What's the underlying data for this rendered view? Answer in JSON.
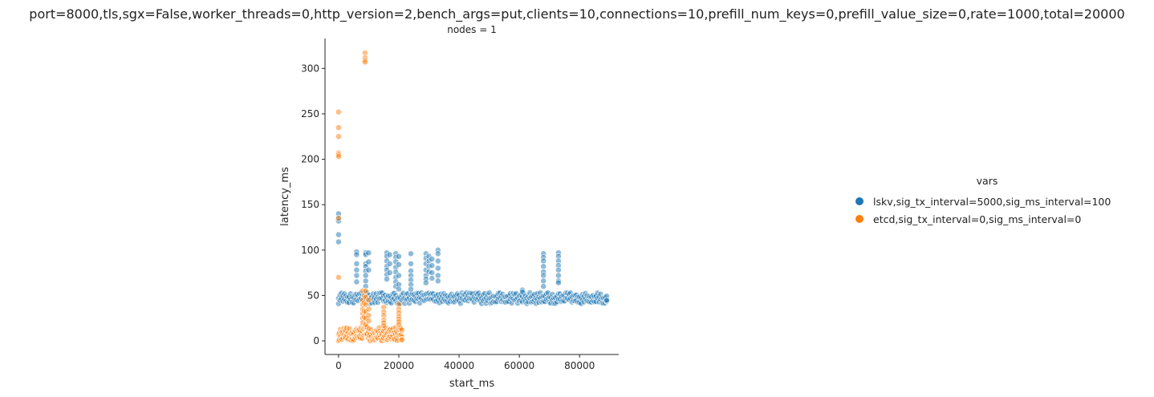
{
  "figure": {
    "title": "port=8000,tls,sgx=False,worker_threads=0,http_version=2,bench_args=put,clients=10,connections=10,prefill_num_keys=0,prefill_value_size=0,rate=1000,total=20000",
    "facet_title": "nodes = 1"
  },
  "legend": {
    "title": "vars",
    "items": [
      {
        "label": "lskv,sig_tx_interval=5000,sig_ms_interval=100",
        "color": "#1f77b4"
      },
      {
        "label": "etcd,sig_tx_interval=0,sig_ms_interval=0",
        "color": "#ff7f0e"
      }
    ]
  },
  "chart_data": {
    "type": "scatter",
    "xlabel": "start_ms",
    "ylabel": "latency_ms",
    "xlim": [
      -4500,
      93000
    ],
    "ylim": [
      -15,
      333
    ],
    "xticks": [
      0,
      20000,
      40000,
      60000,
      80000
    ],
    "yticks": [
      0,
      50,
      100,
      150,
      200,
      250,
      300
    ],
    "grid": false,
    "legend_position": "right",
    "series": [
      {
        "name": "lskv,sig_tx_interval=5000,sig_ms_interval=100",
        "color": "#1f77b4",
        "opacity": 0.5,
        "band": {
          "x_range": [
            0,
            89000
          ],
          "y_range": [
            41,
            53
          ],
          "step_ms": 500
        },
        "points": [
          [
            0,
            140
          ],
          [
            0,
            135
          ],
          [
            0,
            132
          ],
          [
            0,
            117
          ],
          [
            0,
            109
          ],
          [
            6000,
            98
          ],
          [
            6000,
            95
          ],
          [
            6000,
            85
          ],
          [
            6000,
            78
          ],
          [
            6000,
            72
          ],
          [
            6000,
            65
          ],
          [
            9000,
            97
          ],
          [
            9000,
            95
          ],
          [
            9000,
            85
          ],
          [
            9000,
            82
          ],
          [
            9000,
            77
          ],
          [
            9000,
            72
          ],
          [
            9000,
            66
          ],
          [
            9000,
            60
          ],
          [
            10000,
            97
          ],
          [
            10000,
            87
          ],
          [
            10000,
            78
          ],
          [
            16000,
            97
          ],
          [
            16000,
            93
          ],
          [
            16000,
            88
          ],
          [
            16000,
            82
          ],
          [
            16000,
            78
          ],
          [
            16000,
            73
          ],
          [
            16000,
            68
          ],
          [
            17000,
            95
          ],
          [
            17000,
            85
          ],
          [
            17000,
            75
          ],
          [
            19000,
            96
          ],
          [
            19000,
            92
          ],
          [
            19000,
            87
          ],
          [
            19000,
            81
          ],
          [
            19000,
            76
          ],
          [
            19000,
            70
          ],
          [
            19000,
            65
          ],
          [
            19000,
            60
          ],
          [
            20000,
            93
          ],
          [
            20000,
            84
          ],
          [
            20000,
            72
          ],
          [
            20000,
            62
          ],
          [
            20000,
            57
          ],
          [
            24000,
            96
          ],
          [
            24000,
            85
          ],
          [
            24000,
            77
          ],
          [
            24000,
            72
          ],
          [
            24000,
            67
          ],
          [
            24000,
            62
          ],
          [
            24000,
            57
          ],
          [
            29000,
            96
          ],
          [
            29000,
            91
          ],
          [
            29000,
            85
          ],
          [
            29000,
            78
          ],
          [
            29000,
            72
          ],
          [
            29000,
            68
          ],
          [
            29000,
            64
          ],
          [
            30000,
            93
          ],
          [
            30000,
            88
          ],
          [
            30000,
            82
          ],
          [
            30000,
            76
          ],
          [
            31000,
            90
          ],
          [
            31000,
            83
          ],
          [
            31000,
            75
          ],
          [
            31000,
            69
          ],
          [
            33000,
            100
          ],
          [
            33000,
            96
          ],
          [
            33000,
            88
          ],
          [
            33000,
            80
          ],
          [
            33000,
            72
          ],
          [
            33000,
            66
          ],
          [
            61000,
            56
          ],
          [
            61000,
            54
          ],
          [
            68000,
            96
          ],
          [
            68000,
            92
          ],
          [
            68000,
            88
          ],
          [
            68000,
            82
          ],
          [
            68000,
            76
          ],
          [
            68000,
            72
          ],
          [
            68000,
            66
          ],
          [
            68000,
            60
          ],
          [
            73000,
            97
          ],
          [
            73000,
            93
          ],
          [
            73000,
            88
          ],
          [
            73000,
            83
          ],
          [
            73000,
            78
          ],
          [
            73000,
            72
          ],
          [
            73000,
            66
          ],
          [
            73000,
            64
          ],
          [
            89000,
            44
          ],
          [
            89000,
            45
          ]
        ]
      },
      {
        "name": "etcd,sig_tx_interval=0,sig_ms_interval=0",
        "color": "#ff7f0e",
        "opacity": 0.5,
        "band": {
          "x_range": [
            0,
            21000
          ],
          "y_range": [
            0,
            15
          ],
          "step_ms": 300
        },
        "points": [
          [
            0,
            252
          ],
          [
            0,
            235
          ],
          [
            0,
            225
          ],
          [
            0,
            207
          ],
          [
            0,
            205
          ],
          [
            0,
            203
          ],
          [
            0,
            135
          ],
          [
            0,
            70
          ],
          [
            8800,
            317
          ],
          [
            8800,
            312
          ],
          [
            8800,
            309
          ],
          [
            8800,
            307
          ],
          [
            8000,
            55
          ],
          [
            8000,
            45
          ],
          [
            8000,
            40
          ],
          [
            8000,
            35
          ],
          [
            8000,
            30
          ],
          [
            8000,
            25
          ],
          [
            8000,
            20
          ],
          [
            8500,
            50
          ],
          [
            8500,
            42
          ],
          [
            8500,
            33
          ],
          [
            8500,
            26
          ],
          [
            9000,
            55
          ],
          [
            9000,
            48
          ],
          [
            9000,
            40
          ],
          [
            9000,
            32
          ],
          [
            9000,
            25
          ],
          [
            9000,
            18
          ],
          [
            10000,
            45
          ],
          [
            10000,
            35
          ],
          [
            10000,
            28
          ],
          [
            10000,
            22
          ],
          [
            15000,
            37
          ],
          [
            15000,
            32
          ],
          [
            15000,
            28
          ],
          [
            15000,
            23
          ],
          [
            15000,
            20
          ],
          [
            15000,
            17
          ],
          [
            20000,
            40
          ],
          [
            20000,
            35
          ],
          [
            20000,
            31
          ],
          [
            20000,
            27
          ],
          [
            20000,
            24
          ],
          [
            20000,
            21
          ],
          [
            20000,
            18
          ],
          [
            21000,
            2
          ],
          [
            21000,
            1
          ]
        ]
      }
    ]
  }
}
